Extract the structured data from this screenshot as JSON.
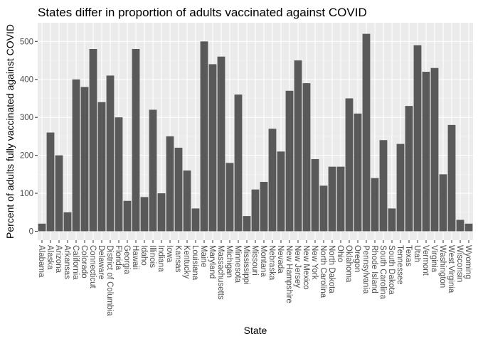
{
  "chart_data": {
    "type": "bar",
    "title": "States differ in proportion of adults vaccinated against COVID",
    "xlabel": "State",
    "ylabel": "Percent of adults fully vaccinated against COVID",
    "ylim": [
      0,
      540
    ],
    "yticks": [
      0,
      100,
      200,
      300,
      400,
      500
    ],
    "grid": true,
    "legend": "none",
    "colors": {
      "bar": "#595959",
      "panel": "#ebebeb",
      "grid_major": "#ffffff"
    },
    "categories": [
      "Alabama",
      "Alaska",
      "Arizona",
      "Arkansas",
      "California",
      "Colorado",
      "Connecticut",
      "Delaware",
      "District of Columbia",
      "Florida",
      "Georgia",
      "Hawaii",
      "Idaho",
      "Illinois",
      "Indiana",
      "Iowa",
      "Kansas",
      "Kentucky",
      "Louisiana",
      "Maine",
      "Maryland",
      "Massachusetts",
      "Michigan",
      "Minnesota",
      "Mississippi",
      "Missouri",
      "Montana",
      "Nebraska",
      "Nevada",
      "New Hampshire",
      "New Jersey",
      "New Mexico",
      "New York",
      "North Carolina",
      "North Dakota",
      "Ohio",
      "Oklahoma",
      "Oregon",
      "Pennsylvania",
      "Rhode Island",
      "South Carolina",
      "South Dakota",
      "Tennessee",
      "Texas",
      "Utah",
      "Vermont",
      "Virginia",
      "Washington",
      "West Virginia",
      "Wisconsin",
      "Wyoming"
    ],
    "values": [
      20,
      260,
      200,
      50,
      400,
      380,
      480,
      340,
      410,
      300,
      80,
      480,
      90,
      320,
      100,
      250,
      220,
      160,
      60,
      500,
      440,
      460,
      180,
      360,
      40,
      110,
      130,
      270,
      210,
      370,
      450,
      390,
      190,
      120,
      170,
      170,
      350,
      310,
      520,
      140,
      240,
      60,
      230,
      330,
      490,
      420,
      430,
      150,
      280,
      30,
      20
    ]
  }
}
